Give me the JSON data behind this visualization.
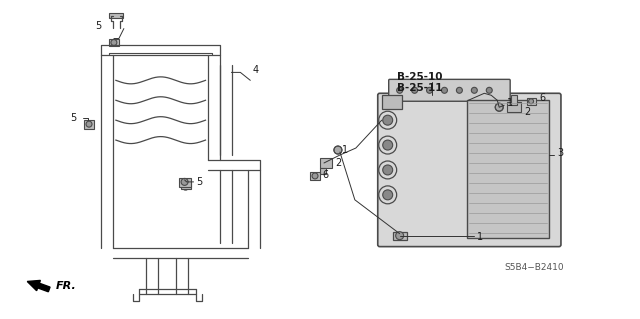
{
  "bg_color": "#ffffff",
  "line_color": "#4a4a4a",
  "text_color": "#1a1a1a",
  "diagram_code": "S5B4−B2410",
  "ref_label_1": "B-25-10",
  "ref_label_2": "B-25-11",
  "direction_label": "FR.",
  "figsize": [
    6.4,
    3.19
  ],
  "dpi": 100
}
